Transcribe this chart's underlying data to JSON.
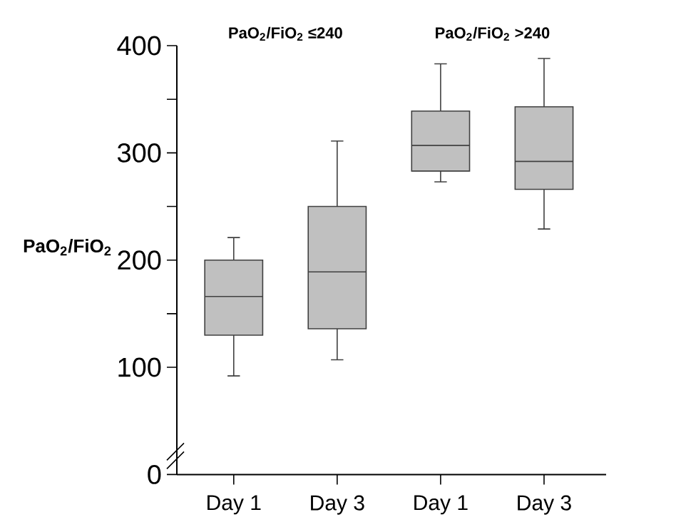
{
  "chart_data": {
    "type": "box",
    "categories": [
      "Day 1",
      "Day 3",
      "Day 1",
      "Day 3"
    ],
    "boxes": [
      {
        "low": 92,
        "q1": 130,
        "median": 166,
        "q3": 200,
        "high": 221
      },
      {
        "low": 107,
        "q1": 136,
        "median": 189,
        "q3": 250,
        "high": 311
      },
      {
        "low": 273,
        "q1": 283,
        "median": 307,
        "q3": 339,
        "high": 383
      },
      {
        "low": 229,
        "q1": 266,
        "median": 292,
        "q3": 343,
        "high": 388
      }
    ],
    "color": "#c0c0c0",
    "ylabel": "PaO$_{2}$/FiO$_{2}$",
    "annotations": [
      "PaO$_{2}$/FiO$_{2}$ ≤240",
      "PaO$_{2}$/FiO$_{2}$ >240"
    ],
    "ylim": [
      0,
      400
    ],
    "yticks": [
      0,
      100,
      {
        "value": 150,
        "label": null
      },
      200,
      {
        "value": 250,
        "label": null
      },
      300,
      {
        "value": 350,
        "label": null
      },
      400
    ]
  }
}
